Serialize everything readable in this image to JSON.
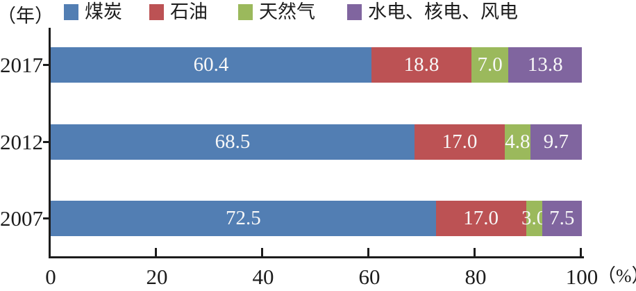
{
  "chart_data": {
    "type": "bar",
    "orientation": "horizontal",
    "stacked": true,
    "title": "",
    "ylabel": "（年）",
    "xlabel": "（%）",
    "categories": [
      "2017",
      "2012",
      "2007"
    ],
    "series": [
      {
        "key": "coal",
        "name": "煤炭",
        "color": "#527EB3",
        "values": [
          60.4,
          68.5,
          72.5
        ]
      },
      {
        "key": "oil",
        "name": "石油",
        "color": "#BC5254",
        "values": [
          18.8,
          17.0,
          17.0
        ]
      },
      {
        "key": "natural-gas",
        "name": "天然气",
        "color": "#9BB95C",
        "values": [
          7.0,
          4.8,
          3.0
        ]
      },
      {
        "key": "hydro-nuclear-wind",
        "name": "水电、核电、风电",
        "color": "#80659F",
        "values": [
          13.8,
          9.7,
          7.5
        ]
      }
    ],
    "xlim": [
      0,
      100
    ],
    "x_ticks": [
      0,
      20,
      40,
      60,
      80,
      100
    ],
    "grid": false,
    "legend_position": "top",
    "value_label_color": "#f8f8f8",
    "axis_color": "#1c1c1c"
  }
}
